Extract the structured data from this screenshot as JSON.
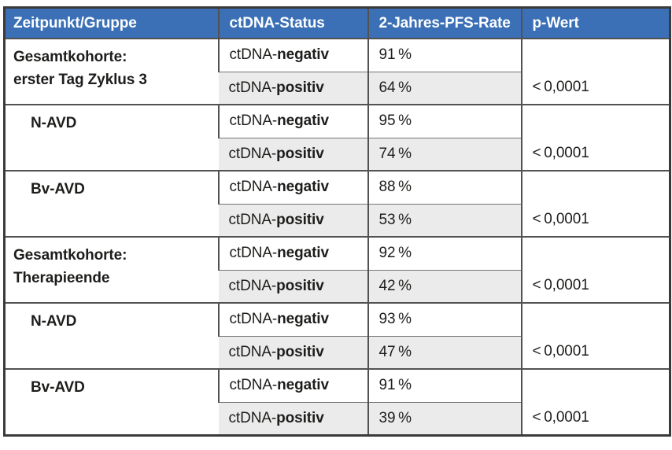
{
  "table": {
    "headers": {
      "col1": "Zeitpunkt/Gruppe",
      "col2": "ctDNA-Status",
      "col3": "2-Jahres-PFS-Rate",
      "col4": "p-Wert"
    },
    "status_prefix": "ctDNA-",
    "groups": [
      {
        "label_line1": "Gesamtkohorte:",
        "label_line2": "erster Tag Zyklus 3",
        "rows": [
          {
            "status": "negativ",
            "rate": "91 %"
          },
          {
            "status": "positiv",
            "rate": "64 %"
          }
        ],
        "p_value": "< 0,0001"
      },
      {
        "label_line1": "N-AVD",
        "label_line2": "",
        "rows": [
          {
            "status": "negativ",
            "rate": "95 %"
          },
          {
            "status": "positiv",
            "rate": "74 %"
          }
        ],
        "p_value": "< 0,0001"
      },
      {
        "label_line1": "Bv-AVD",
        "label_line2": "",
        "rows": [
          {
            "status": "negativ",
            "rate": "88 %"
          },
          {
            "status": "positiv",
            "rate": "53 %"
          }
        ],
        "p_value": "< 0,0001"
      },
      {
        "label_line1": "Gesamtkohorte:",
        "label_line2": "Therapieende",
        "rows": [
          {
            "status": "negativ",
            "rate": "92 %"
          },
          {
            "status": "positiv",
            "rate": "42 %"
          }
        ],
        "p_value": "< 0,0001"
      },
      {
        "label_line1": "N-AVD",
        "label_line2": "",
        "rows": [
          {
            "status": "negativ",
            "rate": "93 %"
          },
          {
            "status": "positiv",
            "rate": "47 %"
          }
        ],
        "p_value": "< 0,0001"
      },
      {
        "label_line1": "Bv-AVD",
        "label_line2": "",
        "rows": [
          {
            "status": "negativ",
            "rate": "91 %"
          },
          {
            "status": "positiv",
            "rate": "39 %"
          }
        ],
        "p_value": "< 0,0001"
      }
    ]
  },
  "colors": {
    "header_bg": "#3b70b6",
    "header_text": "#ffffff",
    "row_shade_bg": "#ebebeb",
    "border_inner": "#525252",
    "border_outer": "#3a3a3a",
    "body_text": "#1d1d1b"
  }
}
